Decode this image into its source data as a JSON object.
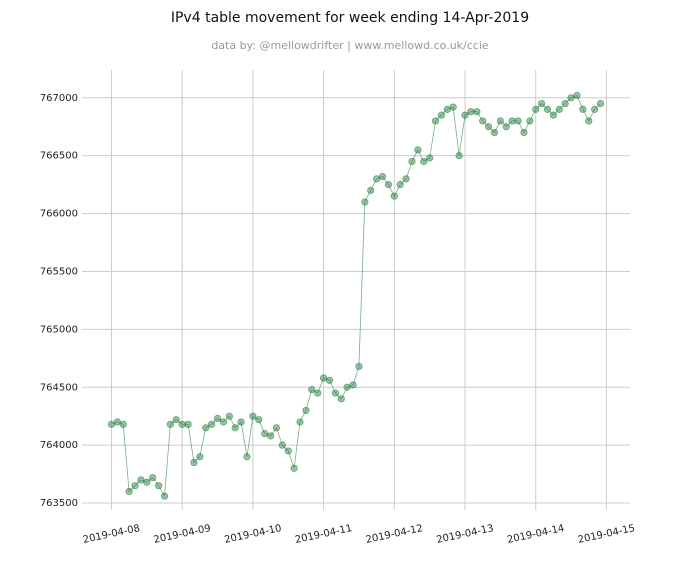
{
  "chart_data": {
    "type": "line",
    "title": "IPv4 table movement for week ending 14-Apr-2019",
    "subtitle": "data by: @mellowdrifter | www.mellowd.co.uk/ccie",
    "color": "#1e7a3a",
    "markers": true,
    "grid": true,
    "xlim": [
      "2019-04-07 14:00",
      "2019-04-15 08:00"
    ],
    "xticks": [
      "2019-04-08",
      "2019-04-09",
      "2019-04-10",
      "2019-04-11",
      "2019-04-12",
      "2019-04-13",
      "2019-04-14",
      "2019-04-15"
    ],
    "ylim": [
      763440,
      767240
    ],
    "yticks": [
      763500,
      764000,
      764500,
      765000,
      765500,
      766000,
      766500,
      767000
    ],
    "x": [
      "2019-04-08 00:00",
      "2019-04-08 02:00",
      "2019-04-08 04:00",
      "2019-04-08 06:00",
      "2019-04-08 08:00",
      "2019-04-08 10:00",
      "2019-04-08 12:00",
      "2019-04-08 14:00",
      "2019-04-08 16:00",
      "2019-04-08 18:00",
      "2019-04-08 20:00",
      "2019-04-08 22:00",
      "2019-04-09 00:00",
      "2019-04-09 02:00",
      "2019-04-09 04:00",
      "2019-04-09 06:00",
      "2019-04-09 08:00",
      "2019-04-09 10:00",
      "2019-04-09 12:00",
      "2019-04-09 14:00",
      "2019-04-09 16:00",
      "2019-04-09 18:00",
      "2019-04-09 20:00",
      "2019-04-09 22:00",
      "2019-04-10 00:00",
      "2019-04-10 02:00",
      "2019-04-10 04:00",
      "2019-04-10 06:00",
      "2019-04-10 08:00",
      "2019-04-10 10:00",
      "2019-04-10 12:00",
      "2019-04-10 14:00",
      "2019-04-10 16:00",
      "2019-04-10 18:00",
      "2019-04-10 20:00",
      "2019-04-10 22:00",
      "2019-04-11 00:00",
      "2019-04-11 02:00",
      "2019-04-11 04:00",
      "2019-04-11 06:00",
      "2019-04-11 08:00",
      "2019-04-11 10:00",
      "2019-04-11 12:00",
      "2019-04-11 14:00",
      "2019-04-11 16:00",
      "2019-04-11 18:00",
      "2019-04-11 20:00",
      "2019-04-11 22:00",
      "2019-04-12 00:00",
      "2019-04-12 02:00",
      "2019-04-12 04:00",
      "2019-04-12 06:00",
      "2019-04-12 08:00",
      "2019-04-12 10:00",
      "2019-04-12 12:00",
      "2019-04-12 14:00",
      "2019-04-12 16:00",
      "2019-04-12 18:00",
      "2019-04-12 20:00",
      "2019-04-12 22:00",
      "2019-04-13 00:00",
      "2019-04-13 02:00",
      "2019-04-13 04:00",
      "2019-04-13 06:00",
      "2019-04-13 08:00",
      "2019-04-13 10:00",
      "2019-04-13 12:00",
      "2019-04-13 14:00",
      "2019-04-13 16:00",
      "2019-04-13 18:00",
      "2019-04-13 20:00",
      "2019-04-13 22:00",
      "2019-04-14 00:00",
      "2019-04-14 02:00",
      "2019-04-14 04:00",
      "2019-04-14 06:00",
      "2019-04-14 08:00",
      "2019-04-14 10:00",
      "2019-04-14 12:00",
      "2019-04-14 14:00",
      "2019-04-14 16:00",
      "2019-04-14 18:00",
      "2019-04-14 20:00",
      "2019-04-14 22:00"
    ],
    "values": [
      764180,
      764200,
      764180,
      763600,
      763650,
      763700,
      763680,
      763720,
      763650,
      763560,
      764180,
      764220,
      764180,
      764180,
      763850,
      763900,
      764150,
      764180,
      764230,
      764200,
      764250,
      764150,
      764200,
      763900,
      764250,
      764220,
      764100,
      764080,
      764150,
      764000,
      763950,
      763800,
      764200,
      764300,
      764480,
      764450,
      764580,
      764560,
      764450,
      764400,
      764500,
      764520,
      764680,
      766100,
      766200,
      766300,
      766320,
      766250,
      766150,
      766250,
      766300,
      766450,
      766550,
      766450,
      766480,
      766800,
      766850,
      766900,
      766920,
      766500,
      766850,
      766880,
      766880,
      766800,
      766750,
      766700,
      766800,
      766750,
      766800,
      766800,
      766700,
      766800,
      766900,
      766950,
      766900,
      766850,
      766900,
      766950,
      767000,
      767020,
      766900,
      766800,
      766900,
      766950
    ]
  }
}
